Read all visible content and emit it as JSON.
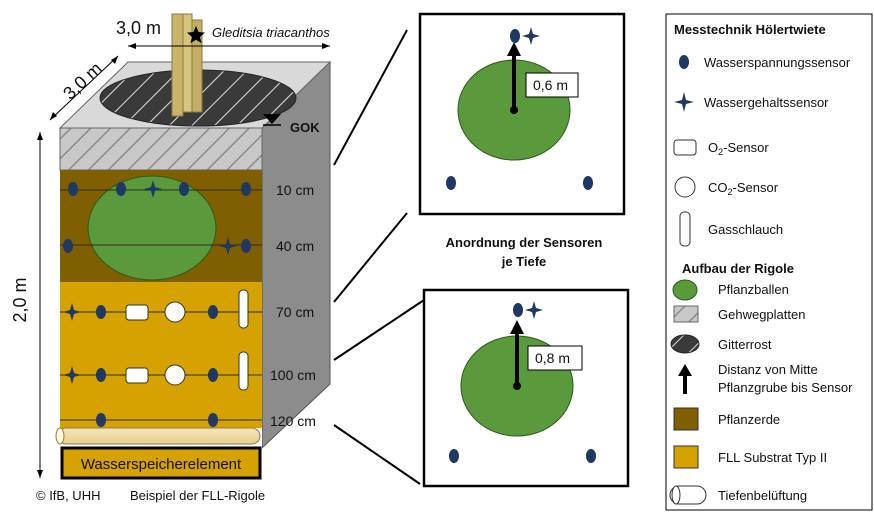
{
  "dimensions": {
    "top_width": "3,0 m",
    "top_depth": "3,0 m",
    "height": "2,0 m"
  },
  "tree_species": "Gleditsia triacanthos",
  "ground_level": "GOK",
  "depths": [
    "10 cm",
    "40 cm",
    "70 cm",
    "100 cm",
    "120 cm"
  ],
  "bottom_layer": "Wasserspeicherelement",
  "copyright": "© IfB, UHH",
  "caption": "Beispiel der FLL-Rigole",
  "arrangement_title": [
    "Anordnung der Sensoren",
    "je Tiefe"
  ],
  "distances": [
    "0,6 m",
    "0,8 m"
  ],
  "legend": {
    "title_sensors": "Messtechnik Hölertwiete",
    "title_structure": "Aufbau der Rigole",
    "items": {
      "water_tension": "Wasserspannungssensor",
      "water_content": "Wassergehaltssensor",
      "o2_prefix": "O",
      "o2_sub": "2",
      "o2_suffix": "-Sensor",
      "co2_prefix": "CO",
      "co2_sub": "2",
      "co2_suffix": "-Sensor",
      "gas_hose": "Gasschlauch",
      "root_ball": "Pflanzballen",
      "paving": "Gehwegplatten",
      "grate": "Gitterrost",
      "distance_line1": "Distanz von Mitte",
      "distance_line2": "Pflanzgrube bis Sensor",
      "plant_soil": "Pflanzerde",
      "substrate": "FLL Substrat Typ II",
      "aeration": "Tiefenbelüftung"
    }
  },
  "colors": {
    "sensor_blue": "#1f3864",
    "root_ball": "#5b9a3c",
    "plant_soil": "#7f5f00",
    "substrate": "#d6a200",
    "side_gray": "#8c8c8c",
    "paving": "#bfbfbf"
  }
}
